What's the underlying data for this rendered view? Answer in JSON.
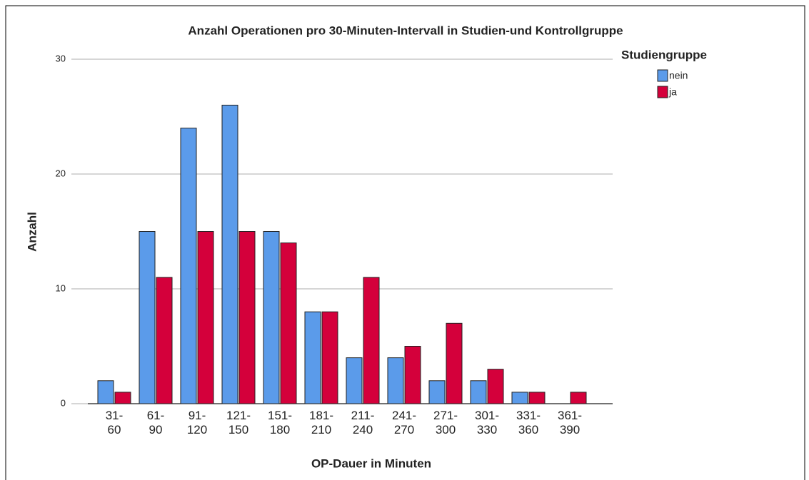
{
  "chart_data": {
    "type": "bar",
    "title": "Anzahl Operationen pro 30-Minuten-Intervall in Studien-und Kontrollgruppe",
    "x_label": "OP-Dauer in Minuten",
    "y_label": "Anzahl",
    "legend_title": "Studiengruppe",
    "categories": [
      "31-60",
      "61-90",
      "91-120",
      "121-150",
      "151-180",
      "181-210",
      "211-240",
      "241-270",
      "271-300",
      "301-330",
      "331-360",
      "361-390"
    ],
    "series": [
      {
        "name": "nein",
        "color": "#5b9bea",
        "values": [
          2,
          15,
          24,
          26,
          15,
          8,
          4,
          4,
          2,
          2,
          1,
          0
        ]
      },
      {
        "name": "ja",
        "color": "#d4003b",
        "values": [
          1,
          11,
          15,
          15,
          14,
          8,
          11,
          5,
          7,
          3,
          1,
          1
        ]
      }
    ],
    "ylim": [
      0,
      30
    ],
    "yticks": [
      0,
      10,
      20,
      30
    ],
    "grid": true,
    "legend": "right"
  }
}
